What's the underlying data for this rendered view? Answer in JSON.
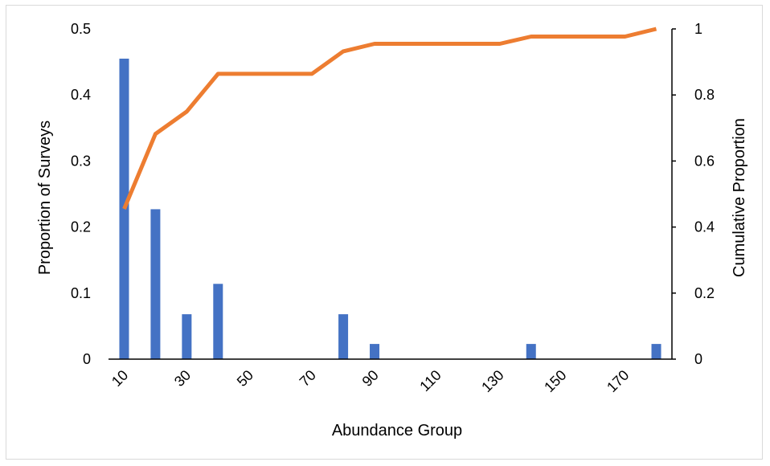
{
  "chart_data": {
    "type": "bar",
    "title": "",
    "xlabel": "Abundance Group",
    "ylabel": "Proportion of Surveys",
    "y2label": "Cumulative Proportion",
    "categories": [
      "10",
      "20",
      "30",
      "40",
      "50",
      "60",
      "70",
      "80",
      "90",
      "100",
      "110",
      "120",
      "130",
      "140",
      "150",
      "160",
      "170",
      "180"
    ],
    "x_tick_labels": [
      "10",
      "30",
      "50",
      "70",
      "90",
      "110",
      "130",
      "150",
      "170"
    ],
    "ylim": [
      0,
      0.5
    ],
    "y_ticks": [
      "0",
      "0.1",
      "0.2",
      "0.3",
      "0.4",
      "0.5"
    ],
    "y2lim": [
      0,
      1
    ],
    "y2_ticks": [
      "0",
      "0.2",
      "0.4",
      "0.6",
      "0.8",
      "1"
    ],
    "series": [
      {
        "type": "bar",
        "axis": "left",
        "color": "#4472c4",
        "values": [
          0.455,
          0.227,
          0.068,
          0.114,
          0,
          0,
          0,
          0.068,
          0.023,
          0,
          0,
          0,
          0,
          0.023,
          0,
          0,
          0,
          0.023
        ]
      },
      {
        "type": "line",
        "axis": "right",
        "color": "#ed7d31",
        "values": [
          0.455,
          0.682,
          0.75,
          0.864,
          0.864,
          0.864,
          0.864,
          0.932,
          0.955,
          0.955,
          0.955,
          0.955,
          0.955,
          0.977,
          0.977,
          0.977,
          0.977,
          1.0
        ]
      }
    ],
    "grid": false,
    "legend": "none"
  }
}
